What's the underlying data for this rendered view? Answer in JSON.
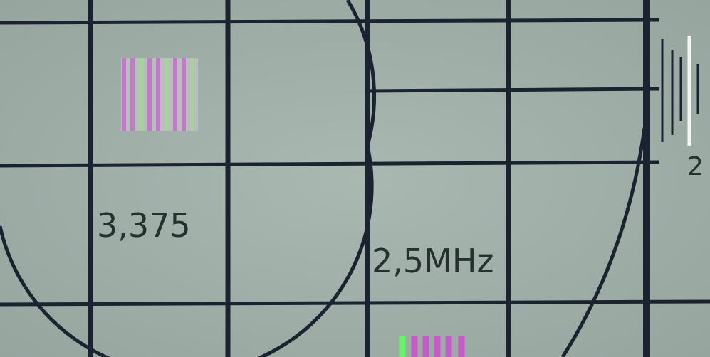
{
  "labels": {
    "left_value": "3,375",
    "frequency": "2,5MHz",
    "corner_digit": "2"
  }
}
